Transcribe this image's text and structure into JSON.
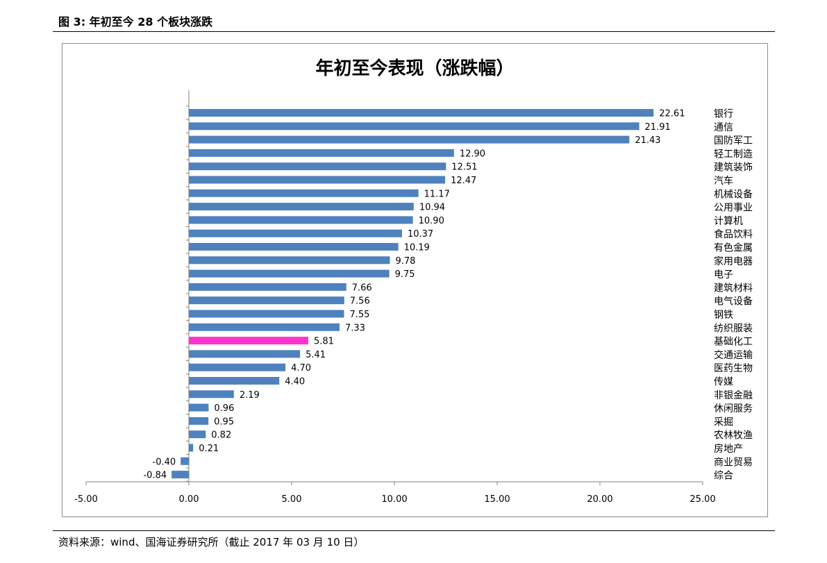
{
  "header": {
    "figure_label": "图 3:  年初至今 28 个板块涨跌"
  },
  "footer": {
    "source": "资料来源：wind、国海证券研究所（截止 2017 年 03 月 10 日）"
  },
  "colors": {
    "bar": "#4f81bd",
    "highlight": "#ff33cc",
    "axis": "#808080",
    "frame": "#8c8c8c"
  },
  "chart_data": {
    "type": "bar",
    "orientation": "horizontal",
    "title": "年初至今表现（涨跌幅）",
    "categories": [
      "银行",
      "通信",
      "国防军工",
      "轻工制造",
      "建筑装饰",
      "汽车",
      "机械设备",
      "公用事业",
      "计算机",
      "食品饮料",
      "有色金属",
      "家用电器",
      "电子",
      "建筑材料",
      "电气设备",
      "钢铁",
      "纺织服装",
      "基础化工",
      "交通运输",
      "医药生物",
      "传媒",
      "非银金融",
      "休闲服务",
      "采掘",
      "农林牧渔",
      "房地产",
      "商业贸易",
      "综合"
    ],
    "values": [
      22.61,
      21.91,
      21.43,
      12.9,
      12.51,
      12.47,
      11.17,
      10.94,
      10.9,
      10.37,
      10.19,
      9.78,
      9.75,
      7.66,
      7.56,
      7.55,
      7.33,
      5.81,
      5.41,
      4.7,
      4.4,
      2.19,
      0.96,
      0.95,
      0.82,
      0.21,
      -0.4,
      -0.84
    ],
    "value_labels": [
      "22.61",
      "21.91",
      "21.43",
      "12.90",
      "12.51",
      "12.47",
      "11.17",
      "10.94",
      "10.90",
      "10.37",
      "10.19",
      "9.78",
      "9.75",
      "7.66",
      "7.56",
      "7.55",
      "7.33",
      "5.81",
      "5.41",
      "4.70",
      "4.40",
      "2.19",
      "0.96",
      "0.95",
      "0.82",
      "0.21",
      "-0.40",
      "-0.84"
    ],
    "highlight_category": "基础化工",
    "xlim": [
      -5,
      25
    ],
    "xticks": [
      -5,
      0,
      5,
      10,
      15,
      20,
      25
    ],
    "xtick_labels": [
      "-5.00",
      "0.00",
      "5.00",
      "10.00",
      "15.00",
      "20.00",
      "25.00"
    ],
    "xlabel": "",
    "ylabel": "",
    "grid": false,
    "category_labels_position": "right"
  }
}
